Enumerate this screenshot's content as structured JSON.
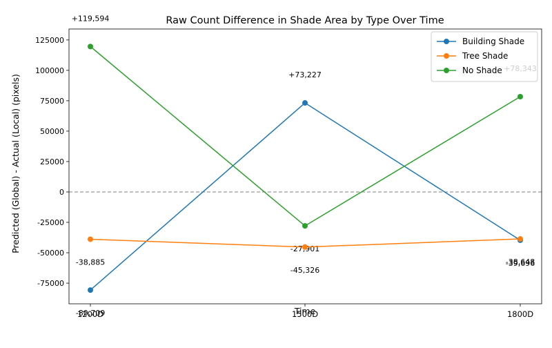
{
  "chart_data": {
    "type": "line",
    "title": "Raw Count Difference in Shade Area by Type Over Time",
    "xlabel": "Time",
    "ylabel": "Predicted (Global) - Actual (Local) (pixels)",
    "categories": [
      "1200D",
      "1500D",
      "1800D"
    ],
    "ylim": [
      -92000,
      134000
    ],
    "yticks": [
      -75000,
      -50000,
      -25000,
      0,
      25000,
      50000,
      75000,
      100000,
      125000
    ],
    "grid": false,
    "legend_position": "top-right",
    "reference_line": 0,
    "series": [
      {
        "name": "Building Shade",
        "color": "#1f77b4",
        "values": [
          -80709,
          73227,
          -39696
        ],
        "labels": [
          "-80,709",
          "+73,227",
          "-39,696"
        ]
      },
      {
        "name": "Tree Shade",
        "color": "#ff7f0e",
        "values": [
          -38885,
          -45326,
          -38648
        ],
        "labels": [
          "-38,885",
          "-45,326",
          "-38,648"
        ]
      },
      {
        "name": "No Shade",
        "color": "#2ca02c",
        "values": [
          119594,
          -27901,
          78343
        ],
        "labels": [
          "+119,594",
          "-27,901",
          "+78,343"
        ]
      }
    ]
  }
}
